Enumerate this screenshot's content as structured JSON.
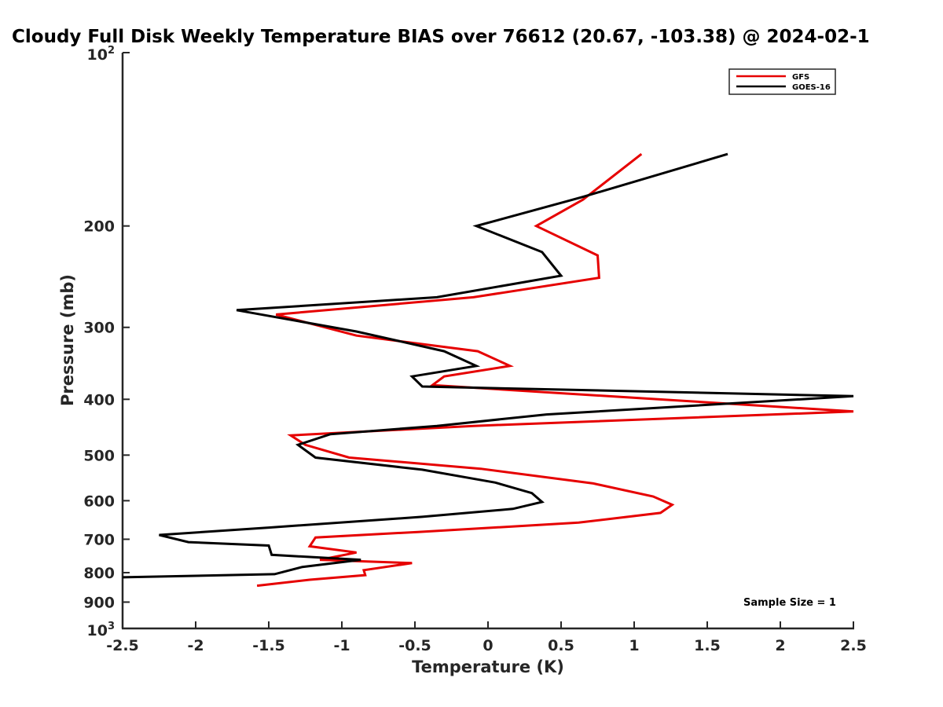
{
  "chart_data": {
    "type": "line",
    "title": "Cloudy Full Disk Weekly Temperature BIAS over 76612 (20.67, -103.38) @ 2024-02-1",
    "xlabel": "Temperature (K)",
    "ylabel": "Pressure (mb)",
    "xlim": [
      -2.5,
      2.5
    ],
    "ylim": [
      100,
      1000
    ],
    "yscale": "log",
    "yaxis_reversed": true,
    "x_ticks": [
      "-2.5",
      "-2",
      "-1.5",
      "-1",
      "-0.5",
      "0",
      "0.5",
      "1",
      "1.5",
      "2",
      "2.5"
    ],
    "y_ticks": [
      {
        "value": 200,
        "label": "200"
      },
      {
        "value": 300,
        "label": "300"
      },
      {
        "value": 400,
        "label": "400"
      },
      {
        "value": 500,
        "label": "500"
      },
      {
        "value": 600,
        "label": "600"
      },
      {
        "value": 700,
        "label": "700"
      },
      {
        "value": 800,
        "label": "800"
      },
      {
        "value": 900,
        "label": "900"
      }
    ],
    "y_ticks_power": [
      {
        "value": 100,
        "base": "10",
        "exp": "2"
      },
      {
        "value": 1000,
        "base": "10",
        "exp": "3"
      }
    ],
    "grid": false,
    "legend_position": "top-right",
    "annotation": "Sample Size = 1",
    "series": [
      {
        "name": "GFS",
        "color": "#e60000",
        "points": [
          [
            1.05,
            150
          ],
          [
            0.65,
            180
          ],
          [
            0.33,
            200
          ],
          [
            0.75,
            225
          ],
          [
            0.76,
            246
          ],
          [
            -0.1,
            266
          ],
          [
            -1.45,
            285
          ],
          [
            -0.9,
            310
          ],
          [
            -0.07,
            330
          ],
          [
            0.15,
            350
          ],
          [
            -0.3,
            365
          ],
          [
            -0.38,
            378
          ],
          [
            2.5,
            420
          ],
          [
            -0.1,
            445
          ],
          [
            -1.35,
            462
          ],
          [
            -1.25,
            480
          ],
          [
            -0.95,
            505
          ],
          [
            -0.05,
            528
          ],
          [
            0.72,
            560
          ],
          [
            1.13,
            590
          ],
          [
            1.26,
            610
          ],
          [
            1.18,
            630
          ],
          [
            0.62,
            655
          ],
          [
            -0.48,
            680
          ],
          [
            -1.18,
            695
          ],
          [
            -1.22,
            720
          ],
          [
            -0.9,
            738
          ],
          [
            -1.15,
            760
          ],
          [
            -0.52,
            770
          ],
          [
            -0.85,
            792
          ],
          [
            -0.84,
            808
          ],
          [
            -1.22,
            823
          ],
          [
            -1.58,
            843
          ]
        ]
      },
      {
        "name": "GOES-16",
        "color": "#000000",
        "points": [
          [
            1.64,
            150
          ],
          [
            0.65,
            178
          ],
          [
            -0.08,
            200
          ],
          [
            0.37,
            222
          ],
          [
            0.5,
            244
          ],
          [
            -0.35,
            266
          ],
          [
            -1.72,
            280
          ],
          [
            -0.9,
            305
          ],
          [
            -0.3,
            330
          ],
          [
            -0.08,
            350
          ],
          [
            -0.52,
            365
          ],
          [
            -0.45,
            380
          ],
          [
            2.5,
            395
          ],
          [
            0.4,
            425
          ],
          [
            -0.35,
            445
          ],
          [
            -1.08,
            460
          ],
          [
            -1.3,
            480
          ],
          [
            -1.18,
            505
          ],
          [
            -0.45,
            530
          ],
          [
            0.05,
            558
          ],
          [
            0.3,
            582
          ],
          [
            0.37,
            603
          ],
          [
            0.17,
            620
          ],
          [
            -0.45,
            640
          ],
          [
            -1.5,
            668
          ],
          [
            -2.25,
            688
          ],
          [
            -2.05,
            708
          ],
          [
            -1.5,
            718
          ],
          [
            -1.48,
            745
          ],
          [
            -0.87,
            760
          ],
          [
            -1.27,
            782
          ],
          [
            -1.46,
            805
          ],
          [
            -2.5,
            815
          ]
        ]
      }
    ]
  }
}
